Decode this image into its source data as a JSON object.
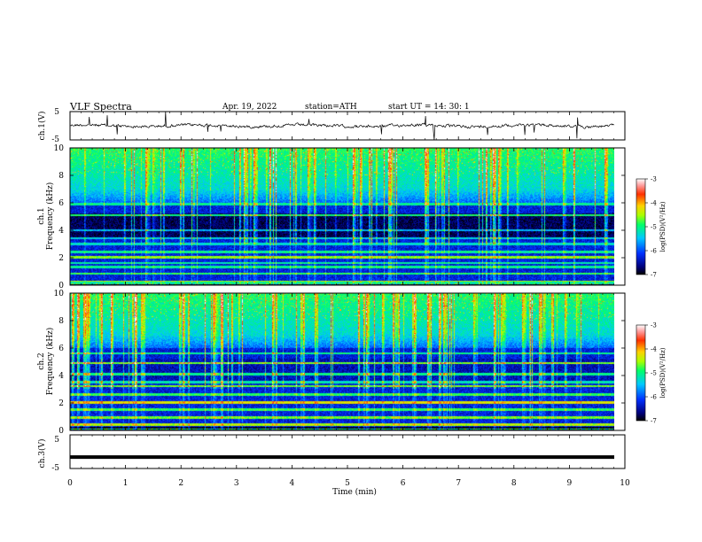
{
  "header": {
    "title": "VLF  Spectra",
    "date": "Apr. 19, 2022",
    "station": "station=ATH",
    "start": "start  UT  =    14: 30: 1"
  },
  "chart_data": [
    {
      "type": "line",
      "ylabel": "ch.1(V)",
      "ylim": [
        -5,
        5
      ],
      "yticks": [
        "5",
        "-5"
      ],
      "description_values": "noisy waveform around 0 V, amplitude ~1 V with spikes"
    },
    {
      "type": "heatmap",
      "ylabel_line1": "ch.1",
      "ylabel_line2": "Frequency  (kHz)",
      "ylim": [
        0,
        10
      ],
      "yticks": [
        "0",
        "2",
        "4",
        "6",
        "8",
        "10"
      ],
      "colorbar": {
        "label": "log(PSD)(V²/Hz)",
        "range": [
          -7,
          -3
        ],
        "ticks": [
          "-3",
          "-4",
          "-5",
          "-6",
          "-7"
        ]
      }
    },
    {
      "type": "heatmap",
      "ylabel_line1": "ch.2",
      "ylabel_line2": "Frequency  (kHz)",
      "ylim": [
        0,
        10
      ],
      "yticks": [
        "0",
        "2",
        "4",
        "6",
        "8",
        "10"
      ],
      "colorbar": {
        "label": "log(PSD)(V²/Hz)",
        "range": [
          -7,
          -3
        ],
        "ticks": [
          "-3",
          "-4",
          "-5",
          "-6",
          "-7"
        ]
      }
    },
    {
      "type": "line",
      "ylabel": "ch.3(V)",
      "ylim": [
        -5,
        5
      ],
      "yticks": [
        "5",
        "-5"
      ],
      "value_approx": -1.5
    }
  ],
  "xaxis": {
    "label": "Time  (min)",
    "xlim": [
      0,
      10
    ],
    "ticks": [
      "0",
      "1",
      "2",
      "3",
      "4",
      "5",
      "6",
      "7",
      "8",
      "9",
      "10"
    ]
  }
}
